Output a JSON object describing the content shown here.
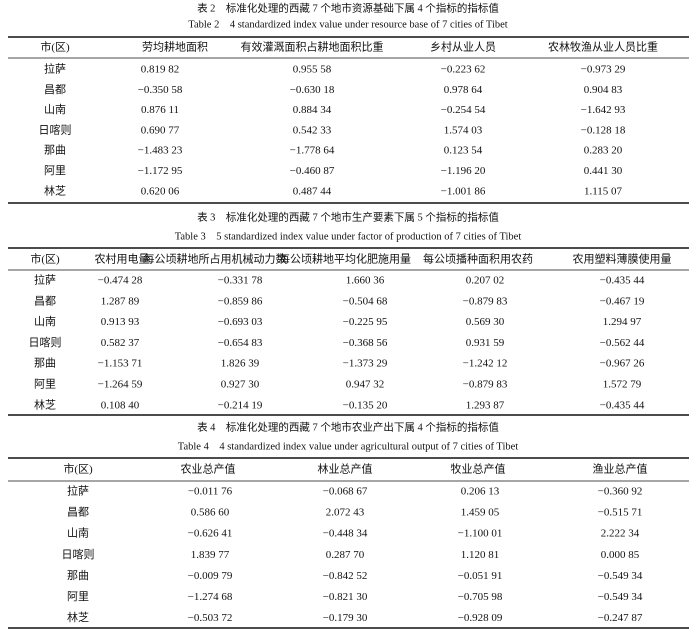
{
  "tables": [
    {
      "title": "表 2　标准化处理的西藏 7 个地市资源基础下属 4 个指标的指标值",
      "title_en": "Table 2　4 standardized index value under resource base of 7 cities of Tibet",
      "columns": [
        "市(区)",
        "劳均耕地面积",
        "有效灌溉面积占耕地面积比重",
        "乡村从业人员",
        "农林牧渔从业人员比重"
      ],
      "rows": [
        [
          "拉萨",
          "0.819 82",
          "0.955 58",
          "−0.223 62",
          "−0.973 29"
        ],
        [
          "昌都",
          "−0.350 58",
          "−0.630 18",
          "0.978 64",
          "0.904 83"
        ],
        [
          "山南",
          "0.876 11",
          "0.884 34",
          "−0.254 54",
          "−1.642 93"
        ],
        [
          "日喀则",
          "0.690 77",
          "0.542 33",
          "1.574 03",
          "−0.128 18"
        ],
        [
          "那曲",
          "−1.483 23",
          "−1.778 64",
          "0.123 54",
          "0.283 20"
        ],
        [
          "阿里",
          "−1.172 95",
          "−0.460 87",
          "−1.196 20",
          "0.441 30"
        ],
        [
          "林芝",
          "0.620 06",
          "0.487 44",
          "−1.001 86",
          "1.115 07"
        ]
      ]
    },
    {
      "title": "表 3　标准化处理的西藏 7 个地市生产要素下属 5 个指标的指标值",
      "title_en": "Table 3　5 standardized index value under factor of production of 7 cities of Tibet",
      "columns": [
        "市(区)",
        "农村用电量",
        "每公顷耕地所占用机械动力数",
        "每公顷耕地平均化肥施用量",
        "每公顷播种面积用农药",
        "农用塑料薄膜使用量"
      ],
      "rows": [
        [
          "拉萨",
          "−0.474 28",
          "−0.331 78",
          "1.660 36",
          "0.207 02",
          "−0.435 44"
        ],
        [
          "昌都",
          "1.287 89",
          "−0.859 86",
          "−0.504 68",
          "−0.879 83",
          "−0.467 19"
        ],
        [
          "山南",
          "0.913 93",
          "−0.693 03",
          "−0.225 95",
          "0.569 30",
          "1.294 97"
        ],
        [
          "日喀则",
          "0.582 37",
          "−0.654 83",
          "−0.368 56",
          "0.931 59",
          "−0.562 44"
        ],
        [
          "那曲",
          "−1.153 71",
          "1.826 39",
          "−1.373 29",
          "−1.242 12",
          "−0.967 26"
        ],
        [
          "阿里",
          "−1.264 59",
          "0.927 30",
          "0.947 32",
          "−0.879 83",
          "1.572 79"
        ],
        [
          "林芝",
          "0.108 40",
          "−0.214 19",
          "−0.135 20",
          "1.293 87",
          "−0.435 44"
        ]
      ]
    },
    {
      "title": "表 4　标准化处理的西藏 7 个地市农业产出下属 4 个指标的指标值",
      "title_en": "Table 4　4 standardized index value under agricultural output of 7 cities of Tibet",
      "columns": [
        "市(区)",
        "农业总产值",
        "林业总产值",
        "牧业总产值",
        "渔业总产值"
      ],
      "rows": [
        [
          "拉萨",
          "−0.011 76",
          "−0.068 67",
          "0.206 13",
          "−0.360 92"
        ],
        [
          "昌都",
          "0.586 60",
          "2.072 43",
          "1.459 05",
          "−0.515 71"
        ],
        [
          "山南",
          "−0.626 41",
          "−0.448 34",
          "−1.100 01",
          "2.222 34"
        ],
        [
          "日喀则",
          "1.839 77",
          "0.287 70",
          "1.120 81",
          "0.000 85"
        ],
        [
          "那曲",
          "−0.009 79",
          "−0.842 52",
          "−0.051 91",
          "−0.549 34"
        ],
        [
          "阿里",
          "−1.274 68",
          "−0.821 30",
          "−0.705 98",
          "−0.549 34"
        ],
        [
          "林芝",
          "−0.503 72",
          "−0.179 30",
          "−0.928 09",
          "−0.247 87"
        ]
      ]
    }
  ]
}
